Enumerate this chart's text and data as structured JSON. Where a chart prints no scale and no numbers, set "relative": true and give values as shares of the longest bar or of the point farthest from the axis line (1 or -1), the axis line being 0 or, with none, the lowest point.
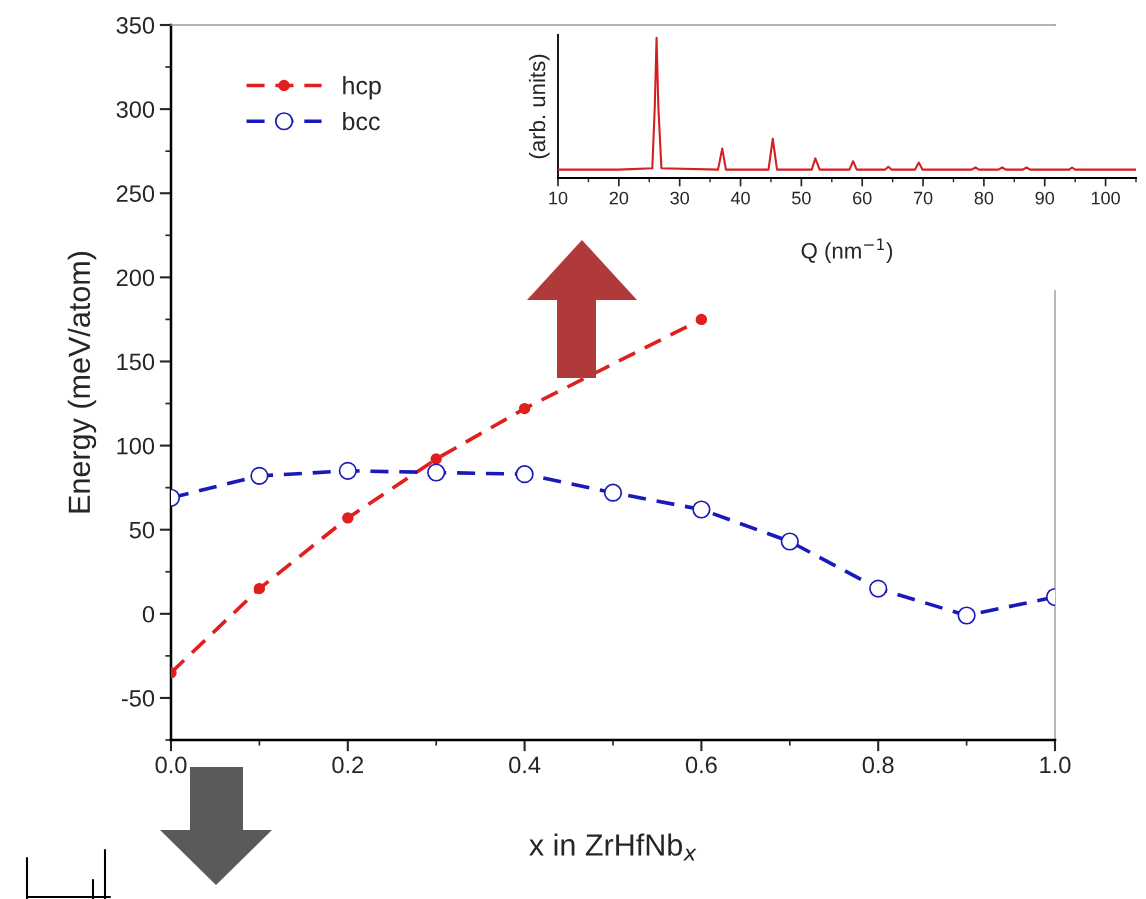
{
  "chart_data": [
    {
      "type": "line",
      "xlabel": "x in ZrHfNb$_{x}$",
      "ylabel": "Energy (meV/atom)",
      "xlim": [
        0,
        1.0
      ],
      "ylim": [
        -75,
        350
      ],
      "xticks": [
        {
          "value": 0,
          "label": "0.0"
        },
        0.2,
        0.4,
        0.6,
        0.8,
        {
          "value": 1.0,
          "label": "1.0"
        }
      ],
      "yticks": [
        -50,
        0,
        50,
        100,
        150,
        200,
        250,
        300,
        350
      ],
      "legend": "top left",
      "line_style": "dashed",
      "grid": false,
      "series": [
        {
          "name": "hcp",
          "color": "#e01f1f",
          "marker": "circle",
          "x": [
            0,
            0.1,
            0.2,
            0.3,
            0.4,
            0.6
          ],
          "values": [
            -35,
            15,
            57,
            92,
            122,
            175
          ]
        },
        {
          "name": "bcc",
          "color": "#1a1ab8",
          "marker": "open circle",
          "x": [
            0,
            0.1,
            0.2,
            0.3,
            0.4,
            0.5,
            0.6,
            0.7,
            0.8,
            0.9,
            1.0
          ],
          "values": [
            69,
            82,
            85,
            84,
            83,
            72,
            62,
            43,
            15,
            -1,
            10
          ]
        }
      ]
    },
    {
      "type": "line",
      "relative": true,
      "xlabel": "Q (nm$^{−1}$)",
      "ylabel": "(arb. units)",
      "xlim": [
        10,
        105
      ],
      "xticks": [
        10,
        20,
        30,
        40,
        50,
        60,
        70,
        80,
        90,
        100
      ],
      "line_style": "solid",
      "grid": false,
      "series": [
        {
          "color": "#d42020",
          "x": [
            10,
            20,
            25.5,
            25.9,
            26.2,
            26.5,
            27,
            36.3,
            37,
            37.6,
            44.6,
            45.3,
            46,
            51.7,
            52.3,
            53,
            57.9,
            58.5,
            59.1,
            63.8,
            64.3,
            64.8,
            68.7,
            69.3,
            69.9,
            78,
            78.6,
            79.2,
            82.4,
            83,
            83.6,
            86.4,
            87,
            87.6,
            94,
            94.5,
            95,
            105
          ],
          "values": [
            0.06,
            0.06,
            0.07,
            0.5,
            1.0,
            0.5,
            0.07,
            0.06,
            0.21,
            0.06,
            0.06,
            0.28,
            0.06,
            0.06,
            0.14,
            0.06,
            0.06,
            0.12,
            0.06,
            0.06,
            0.08,
            0.06,
            0.06,
            0.11,
            0.06,
            0.06,
            0.075,
            0.06,
            0.06,
            0.075,
            0.06,
            0.06,
            0.075,
            0.06,
            0.06,
            0.075,
            0.06,
            0.06
          ]
        }
      ]
    }
  ]
}
